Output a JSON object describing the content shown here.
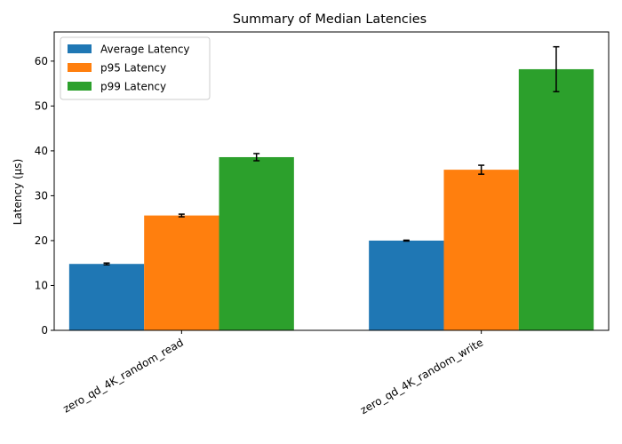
{
  "chart_data": {
    "type": "bar",
    "title": "Summary of Median Latencies",
    "xlabel": "",
    "ylabel": "Latency (µs)",
    "categories": [
      "zero_qd_4K_random_read",
      "zero_qd_4K_random_write"
    ],
    "ylim": [
      0,
      66.5
    ],
    "yticks": [
      0,
      10,
      20,
      30,
      40,
      50,
      60
    ],
    "grid": false,
    "legend_position": "top-left",
    "series": [
      {
        "name": "Average Latency",
        "color": "#1f77b4",
        "values": [
          14.8,
          20.0
        ],
        "errors": [
          0.2,
          0.1
        ]
      },
      {
        "name": "p95 Latency",
        "color": "#ff7f0e",
        "values": [
          25.6,
          35.8
        ],
        "errors": [
          0.3,
          1.0
        ]
      },
      {
        "name": "p99 Latency",
        "color": "#2ca02c",
        "values": [
          38.6,
          58.2
        ],
        "errors": [
          0.8,
          5.0
        ]
      }
    ]
  }
}
